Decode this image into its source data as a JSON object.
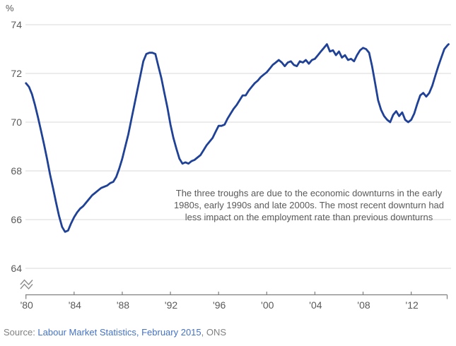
{
  "unit_label": "%",
  "annotation": "The three troughs are due to the economic downturns in the early\n1980s, early 1990s and late 2000s. The most recent downturn had\nless impact on the employment rate than previous downturns",
  "source": {
    "prefix": "Source: ",
    "link_text": "Labour Market Statistics, February 2015",
    "suffix": ", ONS"
  },
  "colors": {
    "line": "#1F4196",
    "grid": "#D9D9D9",
    "axis": "#7F7F7F",
    "tick_text": "#595959",
    "annotation_text": "#595959",
    "source_text": "#808080",
    "link": "#4472C4",
    "break_icon": "#8C8C8C"
  },
  "chart_data": {
    "type": "line",
    "title": "",
    "ylabel": "%",
    "xlabel": "",
    "ylim": [
      64,
      74
    ],
    "grid": "horizontal",
    "axis_break_below": 64,
    "yticks": [
      74,
      72,
      70,
      68,
      66,
      64
    ],
    "xticks": [
      {
        "label": "'80",
        "year": 1980
      },
      {
        "label": "'84",
        "year": 1984
      },
      {
        "label": "'88",
        "year": 1988
      },
      {
        "label": "'92",
        "year": 1992
      },
      {
        "label": "'96",
        "year": 1996
      },
      {
        "label": "'00",
        "year": 2000
      },
      {
        "label": "'04",
        "year": 2004
      },
      {
        "label": "'08",
        "year": 2008
      },
      {
        "label": "'12",
        "year": 2012
      }
    ],
    "x_range_years": [
      1980,
      2015.1
    ],
    "series": [
      {
        "points": [
          [
            1980.0,
            71.6
          ],
          [
            1980.25,
            71.45
          ],
          [
            1980.5,
            71.15
          ],
          [
            1980.75,
            70.7
          ],
          [
            1981.0,
            70.2
          ],
          [
            1981.25,
            69.65
          ],
          [
            1981.5,
            69.1
          ],
          [
            1981.75,
            68.5
          ],
          [
            1982.0,
            67.85
          ],
          [
            1982.25,
            67.3
          ],
          [
            1982.5,
            66.7
          ],
          [
            1982.75,
            66.15
          ],
          [
            1983.0,
            65.7
          ],
          [
            1983.25,
            65.5
          ],
          [
            1983.5,
            65.55
          ],
          [
            1983.75,
            65.85
          ],
          [
            1984.0,
            66.1
          ],
          [
            1984.25,
            66.3
          ],
          [
            1984.5,
            66.45
          ],
          [
            1984.75,
            66.55
          ],
          [
            1985.0,
            66.7
          ],
          [
            1985.25,
            66.85
          ],
          [
            1985.5,
            67.0
          ],
          [
            1985.75,
            67.1
          ],
          [
            1986.0,
            67.2
          ],
          [
            1986.25,
            67.3
          ],
          [
            1986.5,
            67.35
          ],
          [
            1986.75,
            67.4
          ],
          [
            1987.0,
            67.5
          ],
          [
            1987.25,
            67.55
          ],
          [
            1987.5,
            67.75
          ],
          [
            1987.75,
            68.1
          ],
          [
            1988.0,
            68.5
          ],
          [
            1988.25,
            69.0
          ],
          [
            1988.5,
            69.5
          ],
          [
            1988.75,
            70.1
          ],
          [
            1989.0,
            70.7
          ],
          [
            1989.25,
            71.3
          ],
          [
            1989.5,
            71.9
          ],
          [
            1989.75,
            72.5
          ],
          [
            1990.0,
            72.8
          ],
          [
            1990.25,
            72.85
          ],
          [
            1990.5,
            72.85
          ],
          [
            1990.75,
            72.8
          ],
          [
            1991.0,
            72.3
          ],
          [
            1991.25,
            71.8
          ],
          [
            1991.5,
            71.2
          ],
          [
            1991.75,
            70.6
          ],
          [
            1992.0,
            69.9
          ],
          [
            1992.25,
            69.35
          ],
          [
            1992.5,
            68.9
          ],
          [
            1992.75,
            68.5
          ],
          [
            1993.0,
            68.3
          ],
          [
            1993.25,
            68.35
          ],
          [
            1993.5,
            68.3
          ],
          [
            1993.75,
            68.4
          ],
          [
            1994.0,
            68.45
          ],
          [
            1994.25,
            68.55
          ],
          [
            1994.5,
            68.65
          ],
          [
            1994.75,
            68.85
          ],
          [
            1995.0,
            69.05
          ],
          [
            1995.25,
            69.2
          ],
          [
            1995.5,
            69.35
          ],
          [
            1995.75,
            69.6
          ],
          [
            1996.0,
            69.85
          ],
          [
            1996.25,
            69.85
          ],
          [
            1996.5,
            69.9
          ],
          [
            1996.75,
            70.15
          ],
          [
            1997.0,
            70.35
          ],
          [
            1997.25,
            70.55
          ],
          [
            1997.5,
            70.7
          ],
          [
            1997.75,
            70.9
          ],
          [
            1998.0,
            71.1
          ],
          [
            1998.25,
            71.1
          ],
          [
            1998.5,
            71.3
          ],
          [
            1998.75,
            71.45
          ],
          [
            1999.0,
            71.6
          ],
          [
            1999.25,
            71.7
          ],
          [
            1999.5,
            71.85
          ],
          [
            1999.75,
            71.95
          ],
          [
            2000.0,
            72.05
          ],
          [
            2000.25,
            72.2
          ],
          [
            2000.5,
            72.35
          ],
          [
            2000.75,
            72.45
          ],
          [
            2001.0,
            72.55
          ],
          [
            2001.25,
            72.45
          ],
          [
            2001.5,
            72.3
          ],
          [
            2001.75,
            72.45
          ],
          [
            2002.0,
            72.5
          ],
          [
            2002.25,
            72.35
          ],
          [
            2002.5,
            72.3
          ],
          [
            2002.75,
            72.5
          ],
          [
            2003.0,
            72.45
          ],
          [
            2003.25,
            72.55
          ],
          [
            2003.5,
            72.4
          ],
          [
            2003.75,
            72.55
          ],
          [
            2004.0,
            72.6
          ],
          [
            2004.25,
            72.75
          ],
          [
            2004.5,
            72.9
          ],
          [
            2004.75,
            73.05
          ],
          [
            2005.0,
            73.2
          ],
          [
            2005.25,
            72.9
          ],
          [
            2005.5,
            72.95
          ],
          [
            2005.75,
            72.75
          ],
          [
            2006.0,
            72.9
          ],
          [
            2006.25,
            72.65
          ],
          [
            2006.5,
            72.75
          ],
          [
            2006.75,
            72.55
          ],
          [
            2007.0,
            72.6
          ],
          [
            2007.25,
            72.5
          ],
          [
            2007.5,
            72.75
          ],
          [
            2007.75,
            72.95
          ],
          [
            2008.0,
            73.05
          ],
          [
            2008.25,
            73.0
          ],
          [
            2008.5,
            72.85
          ],
          [
            2008.75,
            72.3
          ],
          [
            2009.0,
            71.6
          ],
          [
            2009.25,
            70.9
          ],
          [
            2009.5,
            70.5
          ],
          [
            2009.75,
            70.25
          ],
          [
            2010.0,
            70.1
          ],
          [
            2010.25,
            70.0
          ],
          [
            2010.5,
            70.3
          ],
          [
            2010.75,
            70.45
          ],
          [
            2011.0,
            70.25
          ],
          [
            2011.25,
            70.4
          ],
          [
            2011.5,
            70.1
          ],
          [
            2011.75,
            70.0
          ],
          [
            2012.0,
            70.1
          ],
          [
            2012.25,
            70.35
          ],
          [
            2012.5,
            70.75
          ],
          [
            2012.75,
            71.1
          ],
          [
            2013.0,
            71.2
          ],
          [
            2013.25,
            71.05
          ],
          [
            2013.5,
            71.2
          ],
          [
            2013.75,
            71.5
          ],
          [
            2014.0,
            71.9
          ],
          [
            2014.25,
            72.3
          ],
          [
            2014.5,
            72.65
          ],
          [
            2014.75,
            73.0
          ],
          [
            2015.0,
            73.15
          ],
          [
            2015.1,
            73.2
          ]
        ]
      }
    ]
  }
}
